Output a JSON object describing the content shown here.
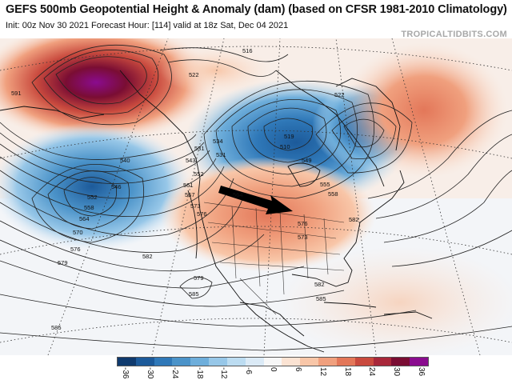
{
  "header": {
    "title": "GEFS 500mb Geopotential Height & Anomaly (dam) (based on CFSR 1981-2010 Climatology)",
    "subtitle": "Init: 00z Nov 30 2021   Forecast Hour: [114]   valid at 18z Sat, Dec 04 2021",
    "brand": "TROPICALTIDBITS.COM"
  },
  "map": {
    "contour_labels": [
      {
        "value": "591"
      },
      {
        "value": "516"
      },
      {
        "value": "522"
      },
      {
        "value": "522"
      },
      {
        "value": "534"
      },
      {
        "value": "540"
      },
      {
        "value": "546"
      },
      {
        "value": "552"
      },
      {
        "value": "558"
      },
      {
        "value": "564"
      },
      {
        "value": "570"
      },
      {
        "value": "576"
      },
      {
        "value": "579"
      },
      {
        "value": "582"
      },
      {
        "value": "585"
      },
      {
        "value": "585"
      },
      {
        "value": "543"
      },
      {
        "value": "552"
      },
      {
        "value": "561"
      },
      {
        "value": "567"
      },
      {
        "value": "573"
      },
      {
        "value": "576"
      },
      {
        "value": "573"
      },
      {
        "value": "576"
      },
      {
        "value": "579"
      },
      {
        "value": "582"
      },
      {
        "value": "585"
      },
      {
        "value": "531"
      },
      {
        "value": "510"
      },
      {
        "value": "519"
      },
      {
        "value": "555"
      },
      {
        "value": "558"
      },
      {
        "value": "564"
      },
      {
        "value": "549"
      },
      {
        "value": "531"
      },
      {
        "value": "582"
      }
    ]
  },
  "colorbar": {
    "colors": [
      "#0f3a6e",
      "#1c5a9a",
      "#2f78b8",
      "#4b93c9",
      "#6eaedb",
      "#97c7e8",
      "#bcdcf1",
      "#dbeaf6",
      "#f7f7f7",
      "#fbe3d3",
      "#f8c6a8",
      "#f0a07e",
      "#e37759",
      "#c94a3e",
      "#a8273a",
      "#7a0d33",
      "#8a0c8f"
    ],
    "labels": [
      "-36",
      "-30",
      "-24",
      "-18",
      "-12",
      "-6",
      "0",
      "6",
      "12",
      "18",
      "24",
      "30",
      "36"
    ]
  }
}
